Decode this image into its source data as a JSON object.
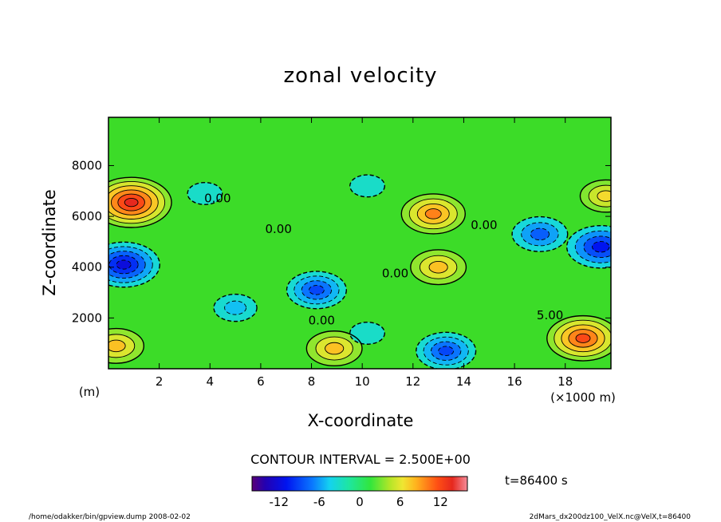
{
  "chart_data": {
    "type": "heatmap",
    "title": "zonal velocity",
    "xlabel": "X-coordinate",
    "ylabel": "Z-coordinate",
    "x_unit_left": "(m)",
    "x_unit_right": "(×1000 m)",
    "xlim": [
      0,
      19.8
    ],
    "ylim": [
      0,
      9900
    ],
    "x_ticks": [
      2,
      4,
      6,
      8,
      10,
      12,
      14,
      16,
      18
    ],
    "y_ticks": [
      2000,
      4000,
      6000,
      8000
    ],
    "contour_interval_label": "CONTOUR INTERVAL = 2.500E+00",
    "contour_labels": [
      {
        "text": "0.00",
        "x": 4.3,
        "y": 6550
      },
      {
        "text": "0.00",
        "x": 6.7,
        "y": 5350
      },
      {
        "text": "0.00",
        "x": 11.3,
        "y": 3600
      },
      {
        "text": "0.00",
        "x": 14.8,
        "y": 5500
      },
      {
        "text": "0.00",
        "x": 8.4,
        "y": 1750
      },
      {
        "text": "5.00",
        "x": 17.4,
        "y": 1950
      }
    ],
    "features": [
      {
        "kind": "max",
        "x": 0.9,
        "y": 6550,
        "value": 14
      },
      {
        "kind": "max",
        "x": 18.7,
        "y": 1200,
        "value": 12
      },
      {
        "kind": "max",
        "x": 12.8,
        "y": 6100,
        "value": 10
      },
      {
        "kind": "max",
        "x": 13.0,
        "y": 4000,
        "value": 8
      },
      {
        "kind": "max",
        "x": 8.9,
        "y": 800,
        "value": 8
      },
      {
        "kind": "max",
        "x": 0.3,
        "y": 900,
        "value": 8
      },
      {
        "kind": "max",
        "x": 19.6,
        "y": 6800,
        "value": 7
      },
      {
        "kind": "min",
        "x": 0.6,
        "y": 4100,
        "value": -12
      },
      {
        "kind": "min",
        "x": 19.4,
        "y": 4800,
        "value": -11
      },
      {
        "kind": "min",
        "x": 17.0,
        "y": 5300,
        "value": -8
      },
      {
        "kind": "min",
        "x": 8.2,
        "y": 3100,
        "value": -9
      },
      {
        "kind": "min",
        "x": 13.3,
        "y": 700,
        "value": -9
      },
      {
        "kind": "min",
        "x": 5.0,
        "y": 2400,
        "value": -5
      },
      {
        "kind": "min",
        "x": 3.8,
        "y": 6900,
        "value": -3
      },
      {
        "kind": "min",
        "x": 10.2,
        "y": 7200,
        "value": -3
      },
      {
        "kind": "min",
        "x": 10.2,
        "y": 1400,
        "value": -3
      }
    ],
    "colorbar": {
      "range": [
        -16,
        16
      ],
      "tick_labels": [
        "-12",
        "-6",
        "0",
        "6",
        "12"
      ],
      "tick_values": [
        -12,
        -6,
        0,
        6,
        12
      ]
    },
    "time_label": "t=86400 s",
    "footer_left": "/home/odakker/bin/gpview.dump  2008-02-02",
    "footer_right": "2dMars_dx200dz100_VelX.nc@VelX,t=86400"
  }
}
